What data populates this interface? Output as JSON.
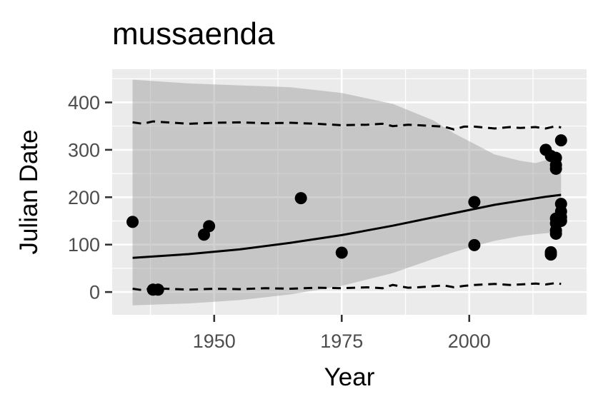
{
  "chart_data": {
    "type": "scatter",
    "title": "mussaenda",
    "xlabel": "Year",
    "ylabel": "Julian Date",
    "xlim": [
      1930,
      2023
    ],
    "ylim": [
      -48,
      470
    ],
    "x_ticks": [
      1950,
      1975,
      2000
    ],
    "y_ticks": [
      0,
      100,
      200,
      300,
      400
    ],
    "grid": true,
    "legend": "none",
    "points": [
      {
        "x": 1934,
        "y": 148
      },
      {
        "x": 1938,
        "y": 5
      },
      {
        "x": 1939,
        "y": 5
      },
      {
        "x": 1948,
        "y": 121
      },
      {
        "x": 1949,
        "y": 139
      },
      {
        "x": 1967,
        "y": 198
      },
      {
        "x": 1975,
        "y": 83
      },
      {
        "x": 2001,
        "y": 190
      },
      {
        "x": 2001,
        "y": 99
      },
      {
        "x": 2015,
        "y": 300
      },
      {
        "x": 2016,
        "y": 287
      },
      {
        "x": 2016,
        "y": 84
      },
      {
        "x": 2016,
        "y": 79
      },
      {
        "x": 2017,
        "y": 283
      },
      {
        "x": 2017,
        "y": 268
      },
      {
        "x": 2017,
        "y": 260
      },
      {
        "x": 2017,
        "y": 155
      },
      {
        "x": 2017,
        "y": 145
      },
      {
        "x": 2017,
        "y": 130
      },
      {
        "x": 2017,
        "y": 123
      },
      {
        "x": 2018,
        "y": 320
      },
      {
        "x": 2018,
        "y": 186
      },
      {
        "x": 2018,
        "y": 170
      },
      {
        "x": 2018,
        "y": 158
      },
      {
        "x": 2018,
        "y": 150
      }
    ],
    "fit_line": {
      "x": [
        1934,
        1945,
        1955,
        1965,
        1975,
        1985,
        1995,
        2005,
        2015,
        2018
      ],
      "y": [
        72,
        80,
        90,
        104,
        120,
        140,
        162,
        184,
        201,
        205
      ]
    },
    "confidence_band": {
      "x": [
        1934,
        1945,
        1955,
        1965,
        1975,
        1985,
        1993,
        1997,
        2000,
        2005,
        2010,
        2013,
        2015,
        2018
      ],
      "upper": [
        448,
        440,
        436,
        432,
        420,
        397,
        362,
        335,
        318,
        290,
        277,
        272,
        278,
        278
      ],
      "lower": [
        -28,
        -24,
        -17,
        -5,
        13,
        40,
        70,
        84,
        94,
        108,
        118,
        122,
        124,
        126
      ]
    },
    "prediction_interval": {
      "x": [
        1934,
        1936,
        1938,
        1945,
        1950,
        1955,
        1960,
        1965,
        1970,
        1975,
        1980,
        1983,
        1985,
        1988,
        1990,
        1995,
        1997,
        1999,
        2001,
        2005,
        2008,
        2010,
        2013,
        2015,
        2017,
        2018
      ],
      "upper": [
        358,
        355,
        360,
        355,
        357,
        358,
        356,
        357,
        355,
        352,
        353,
        355,
        350,
        353,
        352,
        349,
        343,
        349,
        349,
        345,
        348,
        346,
        348,
        345,
        350,
        347
      ],
      "lower": [
        7,
        4,
        8,
        5,
        7,
        6,
        8,
        7,
        9,
        8,
        10,
        8,
        15,
        9,
        10,
        14,
        10,
        13,
        15,
        17,
        15,
        16,
        18,
        16,
        19,
        17
      ]
    }
  }
}
